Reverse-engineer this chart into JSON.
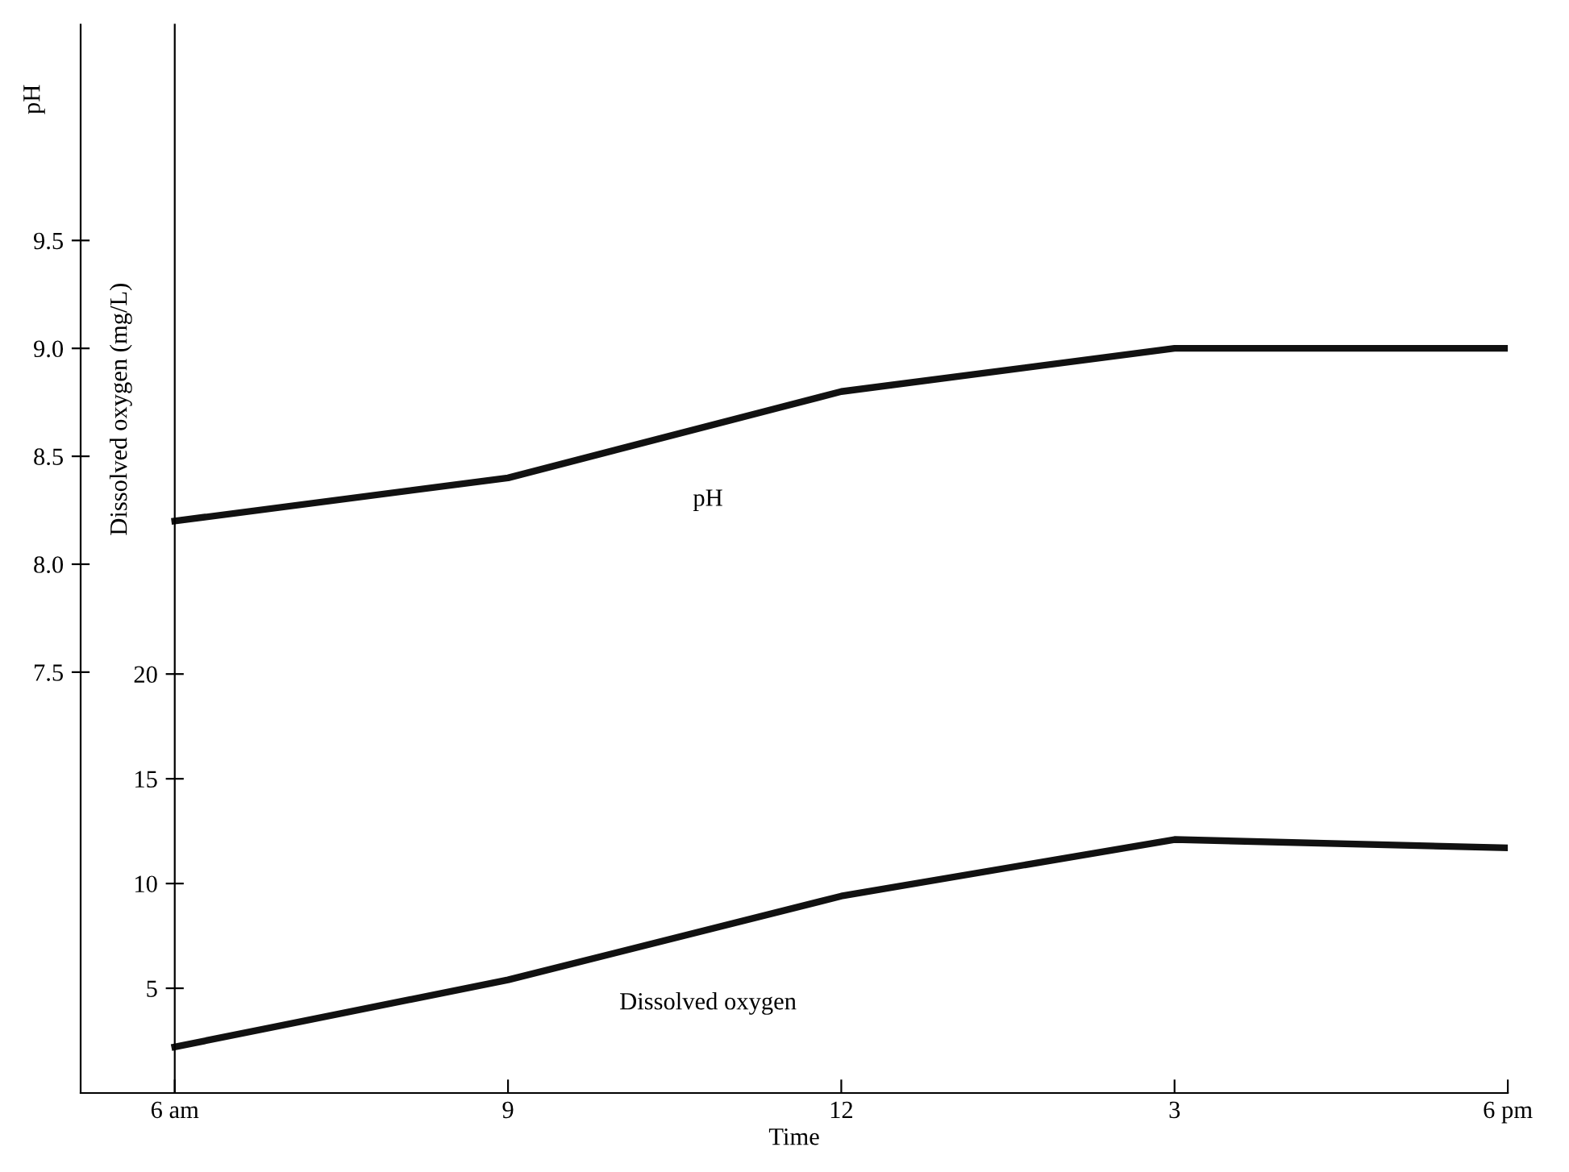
{
  "chart_data": {
    "type": "line",
    "xlabel": "Time",
    "ylabel": "pH",
    "y2label": "Dissolved oxygen (mg/L)",
    "categories": [
      "6 am",
      "9",
      "12",
      "3",
      "6 pm"
    ],
    "ylim": [
      5.55,
      10.5
    ],
    "yticks": [
      7.5,
      {
        "value": 8,
        "label": "8.0"
      },
      8.5,
      {
        "value": 9,
        "label": "9.0"
      },
      9.5
    ],
    "y2lim": [
      0,
      51
    ],
    "y2ticks": [
      5,
      10,
      15,
      20
    ],
    "series": [
      {
        "name": "pH",
        "color": "#111111",
        "values": [
          8.2,
          8.4,
          8.8,
          9.0,
          9.0
        ]
      },
      {
        "name": "Dissolved oxygen",
        "color": "#111111",
        "axis": "y2",
        "values": [
          2.2,
          5.4,
          9.4,
          12.1,
          11.7
        ]
      }
    ],
    "grid": false,
    "legend": false,
    "marker": "none",
    "line_style": "solid"
  }
}
